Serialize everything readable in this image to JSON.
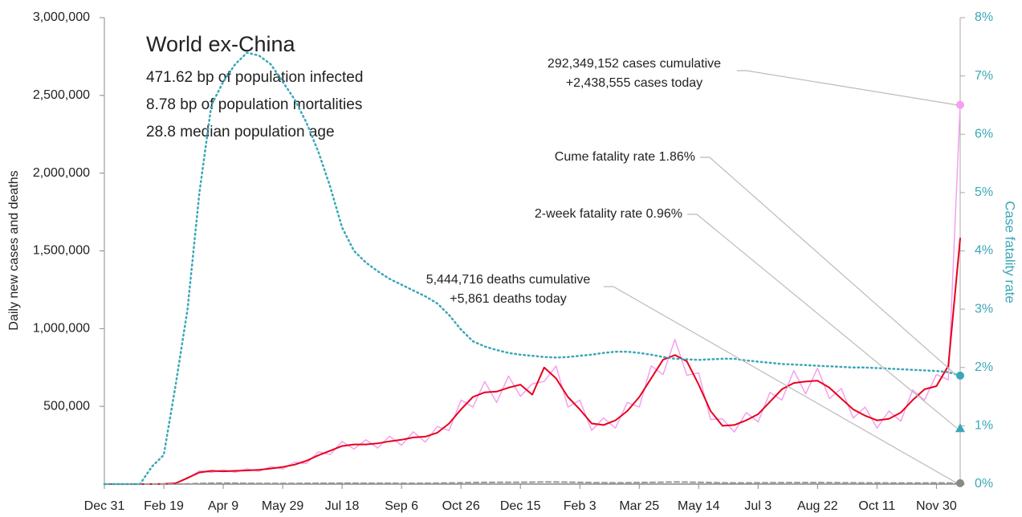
{
  "chart_data": {
    "type": "line",
    "title": "World ex-China",
    "subtitle": [
      "471.62 bp of population infected",
      "8.78 bp of population mortalities",
      "28.8 median population age"
    ],
    "ylabel": "Daily new cases and deaths",
    "y2label": "Case fatality rate",
    "xlim": [
      0,
      720
    ],
    "xticks": [
      {
        "value": 0,
        "label": "Dec 31"
      },
      {
        "value": 50,
        "label": "Feb 19"
      },
      {
        "value": 100,
        "label": "Apr 9"
      },
      {
        "value": 150,
        "label": "May 29"
      },
      {
        "value": 200,
        "label": "Jul 18"
      },
      {
        "value": 250,
        "label": "Sep 6"
      },
      {
        "value": 300,
        "label": "Oct 26"
      },
      {
        "value": 350,
        "label": "Dec 15"
      },
      {
        "value": 400,
        "label": "Feb 3"
      },
      {
        "value": 450,
        "label": "Mar 25"
      },
      {
        "value": 500,
        "label": "May 14"
      },
      {
        "value": 550,
        "label": "Jul 3"
      },
      {
        "value": 600,
        "label": "Aug 22"
      },
      {
        "value": 650,
        "label": "Oct 11"
      },
      {
        "value": 700,
        "label": "Nov 30"
      }
    ],
    "ylim": [
      0,
      3000000
    ],
    "yticks": [
      {
        "value": 500000,
        "label": "500,000"
      },
      {
        "value": 1000000,
        "label": "1,000,000"
      },
      {
        "value": 1500000,
        "label": "1,500,000"
      },
      {
        "value": 2000000,
        "label": "2,000,000"
      },
      {
        "value": 2500000,
        "label": "2,500,000"
      },
      {
        "value": 3000000,
        "label": "3,000,000"
      }
    ],
    "y2lim": [
      0,
      8
    ],
    "y2ticks": [
      {
        "value": 0,
        "label": "0%"
      },
      {
        "value": 1,
        "label": "1%"
      },
      {
        "value": 2,
        "label": "2%"
      },
      {
        "value": 3,
        "label": "3%"
      },
      {
        "value": 4,
        "label": "4%"
      },
      {
        "value": 5,
        "label": "5%"
      },
      {
        "value": 6,
        "label": "6%"
      },
      {
        "value": 7,
        "label": "7%"
      },
      {
        "value": 8,
        "label": "8%"
      }
    ],
    "x": [
      0,
      10,
      20,
      30,
      40,
      50,
      60,
      70,
      80,
      90,
      100,
      110,
      120,
      130,
      140,
      150,
      160,
      170,
      180,
      190,
      200,
      210,
      220,
      230,
      240,
      250,
      260,
      270,
      280,
      290,
      300,
      310,
      320,
      330,
      340,
      350,
      360,
      370,
      380,
      390,
      400,
      410,
      420,
      430,
      440,
      450,
      460,
      470,
      480,
      490,
      500,
      510,
      520,
      530,
      540,
      550,
      560,
      570,
      580,
      590,
      600,
      610,
      620,
      630,
      640,
      650,
      660,
      670,
      680,
      690,
      700,
      710,
      720
    ],
    "series": [
      {
        "color": "#f4a0ee",
        "style": "solid",
        "width": 1.5,
        "values": [
          0,
          0,
          0,
          0,
          0,
          800,
          6000,
          35000,
          85000,
          75000,
          92000,
          76000,
          98000,
          82000,
          112000,
          97000,
          140000,
          132000,
          207000,
          190000,
          274000,
          225000,
          285000,
          232000,
          308000,
          250000,
          336000,
          270000,
          370000,
          345000,
          540000,
          495000,
          660000,
          525000,
          695000,
          565000,
          645000,
          660000,
          760000,
          495000,
          540000,
          345000,
          425000,
          360000,
          525000,
          495000,
          760000,
          705000,
          930000,
          700000,
          715000,
          415000,
          420000,
          335000,
          460000,
          400000,
          590000,
          540000,
          730000,
          580000,
          745000,
          550000,
          615000,
          425000,
          495000,
          360000,
          470000,
          405000,
          605000,
          540000,
          705000,
          670000,
          2438555
        ]
      },
      {
        "color": "#e8001c",
        "style": "solid",
        "width": 2,
        "values": [
          0,
          0,
          0,
          0,
          0,
          1000,
          5000,
          40000,
          75000,
          85000,
          82000,
          85000,
          88000,
          92000,
          100000,
          110000,
          125000,
          150000,
          185000,
          215000,
          245000,
          255000,
          255000,
          262000,
          275000,
          285000,
          300000,
          305000,
          330000,
          390000,
          480000,
          560000,
          590000,
          595000,
          620000,
          640000,
          575000,
          750000,
          680000,
          560000,
          480000,
          390000,
          380000,
          410000,
          470000,
          560000,
          680000,
          800000,
          830000,
          790000,
          640000,
          470000,
          375000,
          380000,
          410000,
          450000,
          530000,
          610000,
          650000,
          660000,
          665000,
          620000,
          550000,
          480000,
          440000,
          410000,
          420000,
          460000,
          540000,
          610000,
          630000,
          760000,
          1580000
        ]
      },
      {
        "color": "#999999",
        "style": "dashed",
        "width": 2,
        "values": [
          0,
          0,
          0,
          0,
          0,
          0,
          200,
          1500,
          4500,
          6000,
          6500,
          6000,
          5000,
          4800,
          4500,
          4500,
          4800,
          5000,
          5500,
          5800,
          6000,
          6000,
          5800,
          5500,
          5500,
          5200,
          5400,
          5600,
          6000,
          7000,
          8500,
          10000,
          11000,
          11500,
          11800,
          12000,
          12500,
          14000,
          13500,
          12500,
          11000,
          9500,
          8800,
          8500,
          9000,
          10000,
          11000,
          12500,
          13500,
          13000,
          11500,
          10000,
          8500,
          8000,
          8000,
          8200,
          9000,
          9500,
          10000,
          10000,
          9800,
          9500,
          9000,
          8500,
          7800,
          7500,
          7200,
          7000,
          7000,
          7200,
          7500,
          7200,
          5861
        ]
      },
      {
        "color": "#3aa7b8",
        "style": "dotted",
        "width": 2.5,
        "axis": "y2",
        "values": [
          0,
          0,
          0,
          0,
          0.3,
          0.5,
          1.7,
          3.0,
          5.0,
          6.5,
          6.9,
          7.2,
          7.4,
          7.35,
          7.2,
          6.9,
          6.6,
          6.2,
          5.7,
          5.1,
          4.4,
          4.0,
          3.8,
          3.65,
          3.52,
          3.42,
          3.32,
          3.22,
          3.1,
          2.9,
          2.65,
          2.45,
          2.36,
          2.3,
          2.25,
          2.22,
          2.2,
          2.18,
          2.17,
          2.18,
          2.2,
          2.22,
          2.25,
          2.27,
          2.27,
          2.25,
          2.22,
          2.18,
          2.15,
          2.14,
          2.13,
          2.14,
          2.15,
          2.15,
          2.12,
          2.1,
          2.08,
          2.06,
          2.05,
          2.04,
          2.03,
          2.02,
          2.01,
          2.0,
          2.0,
          1.99,
          1.98,
          1.97,
          1.96,
          1.95,
          1.94,
          1.92,
          1.86
        ]
      }
    ],
    "annotations": [
      {
        "lines": [
          "292,349,152 cases cumulative",
          "+2,438,555 cases today"
        ],
        "value": 2438555,
        "color": "#f4a0ee",
        "marker": "circle"
      },
      {
        "lines": [
          "Cume fatality rate 1.86%"
        ],
        "value": 1.86,
        "axis": "y2",
        "color": "#3aa7b8",
        "marker": "circle"
      },
      {
        "lines": [
          "2-week fatality rate 0.96%"
        ],
        "value": 0.96,
        "axis": "y2",
        "color": "#3aa7b8",
        "marker": "triangle"
      },
      {
        "lines": [
          "5,444,716 deaths cumulative",
          "+5,861 deaths today"
        ],
        "value": 5861,
        "color": "#888888",
        "marker": "circle"
      }
    ]
  }
}
